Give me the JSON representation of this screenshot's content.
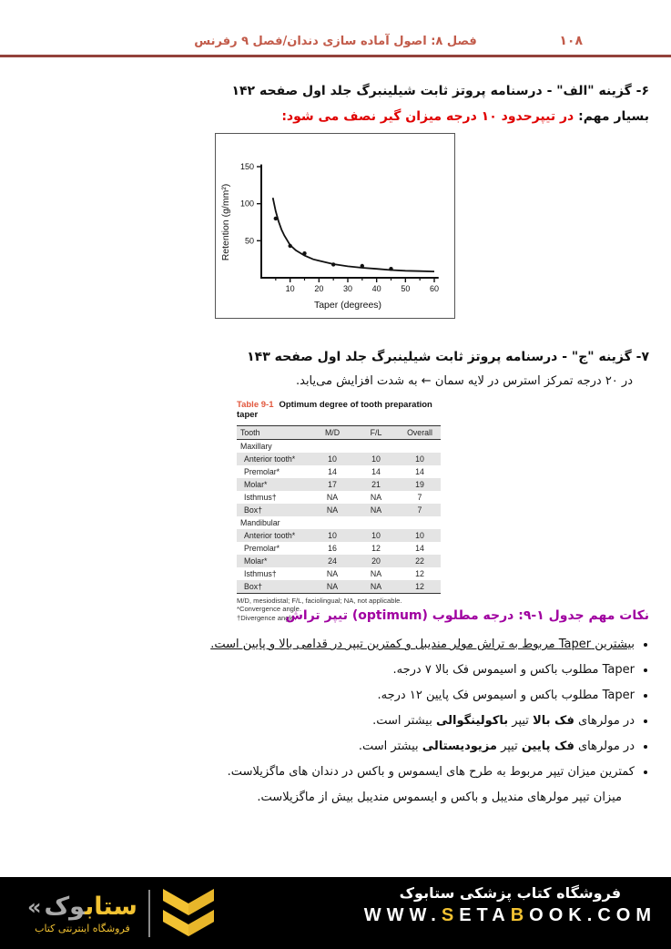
{
  "header": {
    "chapter_title": "فصل ۸: اصول آماده سازی دندان/فصل ۹ رفرنس",
    "page_number": "۱۰۸"
  },
  "section6": {
    "heading": "۶- گزینه \"الف\" - درسنامه پروتز ثابت شیلینبرگ جلد اول صفحه ۱۴۲",
    "note_label": "بسیار مهم: ",
    "note_red": "در تیپرحدود ۱۰ درجه میزان گیر نصف می شود:"
  },
  "chart_data": {
    "type": "scatter",
    "xlabel": "Taper (degrees)",
    "ylabel": "Retention (g/mm²)",
    "xlim": [
      0,
      60
    ],
    "ylim": [
      0,
      160
    ],
    "x_ticks": [
      10,
      20,
      30,
      40,
      50,
      60
    ],
    "x_minor_ticks": [
      5,
      15,
      25,
      35,
      45,
      55
    ],
    "y_ticks": [
      50,
      100,
      150
    ],
    "points": [
      [
        5,
        80
      ],
      [
        10,
        43
      ],
      [
        15,
        33
      ],
      [
        25,
        18
      ],
      [
        35,
        16
      ],
      [
        45,
        12
      ]
    ],
    "curve": [
      [
        4,
        108
      ],
      [
        5,
        90
      ],
      [
        6,
        76
      ],
      [
        7,
        65
      ],
      [
        8,
        57
      ],
      [
        10,
        44
      ],
      [
        12,
        37
      ],
      [
        15,
        30
      ],
      [
        18,
        25
      ],
      [
        20,
        23
      ],
      [
        25,
        18.5
      ],
      [
        30,
        15.5
      ],
      [
        35,
        13.5
      ],
      [
        40,
        12
      ],
      [
        45,
        10.5
      ],
      [
        50,
        9.5
      ],
      [
        55,
        9
      ],
      [
        60,
        8.5
      ]
    ]
  },
  "section7": {
    "heading": "۷- گزینه \"ج\" - درسنامه پروتز ثابت شیلینبرگ جلد اول صفحه ۱۴۳",
    "body": "در ۲۰ درجه تمرکز استرس در لایه سمان ← به شدت افزایش می‌یابد."
  },
  "table": {
    "caption_label": "Table 9-1",
    "caption_title": "Optimum degree of tooth preparation taper",
    "columns": [
      "Tooth",
      "M/D",
      "F/L",
      "Overall"
    ],
    "sections": [
      {
        "name": "Maxillary",
        "rows": [
          [
            "Anterior tooth*",
            "10",
            "10",
            "10"
          ],
          [
            "Premolar*",
            "14",
            "14",
            "14"
          ],
          [
            "Molar*",
            "17",
            "21",
            "19"
          ],
          [
            "Isthmus†",
            "NA",
            "NA",
            "7"
          ],
          [
            "Box†",
            "NA",
            "NA",
            "7"
          ]
        ]
      },
      {
        "name": "Mandibular",
        "rows": [
          [
            "Anterior tooth*",
            "10",
            "10",
            "10"
          ],
          [
            "Premolar*",
            "16",
            "12",
            "14"
          ],
          [
            "Molar*",
            "24",
            "20",
            "22"
          ],
          [
            "Isthmus†",
            "NA",
            "NA",
            "12"
          ],
          [
            "Box†",
            "NA",
            "NA",
            "12"
          ]
        ]
      }
    ],
    "footnotes": [
      "M/D, mesiodistal; F/L, faciolingual; NA, not applicable.",
      "*Convergence angle.",
      "†Divergence angle."
    ]
  },
  "notes": {
    "heading": "نکات مهم جدول ۱-۹: درجه مطلوب (optimum) تیپر تراش",
    "bullets": [
      {
        "segments": [
          {
            "t": "بیشترین Taper مربوط به تراش مولر مندیبل و کمترین تیپر در قدامی بالا و پایین است.",
            "u": true
          }
        ]
      },
      {
        "segments": [
          {
            "t": "Taper مطلوب باکس و اسیموس فک بالا ۷ درجه."
          }
        ]
      },
      {
        "segments": [
          {
            "t": "Taper مطلوب باکس و اسیموس فک پایین ۱۲ درجه."
          }
        ]
      },
      {
        "segments": [
          {
            "t": "در مولرهای "
          },
          {
            "t": "فک بالا",
            "b": true
          },
          {
            "t": " تیپر "
          },
          {
            "t": "باکولینگوالی",
            "b": true
          },
          {
            "t": " بیشتر است."
          }
        ]
      },
      {
        "segments": [
          {
            "t": "در مولرهای "
          },
          {
            "t": "فک پایین",
            "b": true
          },
          {
            "t": " تیپر "
          },
          {
            "t": "مزیودیستالی",
            "b": true
          },
          {
            "t": " بیشتر است."
          }
        ]
      },
      {
        "segments": [
          {
            "t": "کمترین میزان تیپر مربوط به طرح های ایسموس و باکس در دندان های ماگزیلاست."
          }
        ]
      }
    ],
    "closing": "میزان تیپر مولرهای مندیبل و باکس و ایسموس مندیبل  بیش از ماگزیلاست."
  },
  "footer": {
    "store_title": "فروشگاه کتاب پزشکی ستابوک",
    "website": "WWW.SETABOOK.COM",
    "website_gold_indices": [
      4,
      8
    ],
    "logo_guillemet": "«",
    "logo_gold": "ستاب",
    "logo_gray": "وک",
    "logo_subtitle": "فروشگاه اینترنتی کتاب"
  },
  "colors": {
    "header_accent": "#C25B4A",
    "header_rule": "#93423B",
    "red_text": "#E00000",
    "purple_heading": "#A000A0",
    "table_caption_red": "#E2573D",
    "row_shade": "#E4E4E4",
    "footer_bg": "#000000",
    "gold": "#F2C232",
    "logo_gray": "#A9A9A9"
  }
}
